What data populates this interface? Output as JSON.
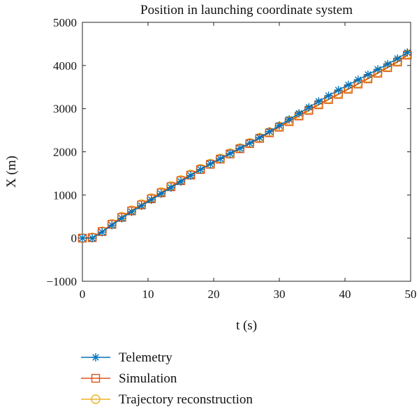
{
  "chart_data": {
    "type": "line",
    "title": "Position in launching coordinate system",
    "xlabel": "t (s)",
    "ylabel": "X (m)",
    "xlim": [
      0,
      50
    ],
    "ylim": [
      -1000,
      5000
    ],
    "xticks": [
      0,
      10,
      20,
      30,
      40,
      50
    ],
    "yticks": [
      -1000,
      0,
      1000,
      2000,
      3000,
      4000,
      5000
    ],
    "xtick_labels": [
      "0",
      "10",
      "20",
      "30",
      "40",
      "50"
    ],
    "ytick_labels": [
      "−1000",
      "0",
      "1000",
      "2000",
      "3000",
      "4000",
      "5000"
    ],
    "grid": false,
    "legend_position": "bottom-left, outside plot",
    "x": [
      0,
      1.5,
      3,
      4.5,
      6,
      7.5,
      9,
      10.5,
      12,
      13.5,
      15,
      16.5,
      18,
      19.5,
      21,
      22.5,
      24,
      25.5,
      27,
      28.5,
      30,
      31.5,
      33,
      34.5,
      36,
      37.5,
      39,
      40.5,
      42,
      43.5,
      45,
      46.5,
      48,
      49.5
    ],
    "series": [
      {
        "name": "Telemetry",
        "color": "#0072BD",
        "marker": "asterisk",
        "values": [
          0,
          0,
          140,
          300,
          460,
          610,
          750,
          890,
          1030,
          1170,
          1310,
          1450,
          1590,
          1720,
          1840,
          1960,
          2080,
          2200,
          2330,
          2470,
          2610,
          2750,
          2890,
          3030,
          3170,
          3300,
          3430,
          3550,
          3670,
          3790,
          3910,
          4030,
          4160,
          4300
        ]
      },
      {
        "name": "Simulation",
        "color": "#D95319",
        "marker": "square",
        "values": [
          0,
          10,
          150,
          320,
          480,
          630,
          770,
          910,
          1050,
          1190,
          1330,
          1460,
          1590,
          1710,
          1830,
          1950,
          2070,
          2190,
          2310,
          2440,
          2570,
          2700,
          2830,
          2960,
          3090,
          3210,
          3330,
          3450,
          3570,
          3690,
          3820,
          3950,
          4080,
          4240
        ]
      },
      {
        "name": "Trajectory reconstruction",
        "color": "#EDB120",
        "marker": "circle",
        "values": [
          0,
          20,
          160,
          330,
          500,
          650,
          790,
          930,
          1070,
          1210,
          1350,
          1480,
          1610,
          1730,
          1850,
          1970,
          2090,
          2210,
          2330,
          2460,
          2590,
          2720,
          2850,
          2980,
          3110,
          3230,
          3350,
          3470,
          3590,
          3710,
          3840,
          3970,
          4100,
          4260
        ]
      }
    ]
  }
}
